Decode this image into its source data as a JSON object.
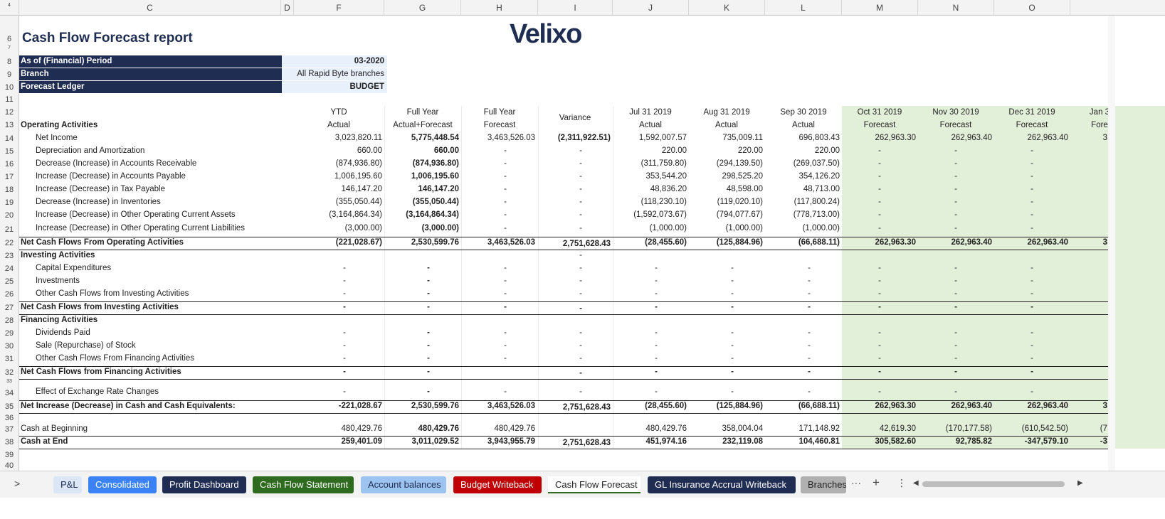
{
  "columns": {
    "C": "C",
    "D": "D",
    "F": "F",
    "G": "G",
    "H": "H",
    "I": "I",
    "J": "J",
    "K": "K",
    "L": "L",
    "M": "M",
    "N": "N",
    "O": "O"
  },
  "title": "Cash Flow Forecast report",
  "logo": "Velixo",
  "params": {
    "period_label": "As of (Financial) Period",
    "period_value": "03-2020",
    "branch_label": "Branch",
    "branch_value": "All Rapid Byte branches",
    "ledger_label": "Forecast Ledger",
    "ledger_value": "BUDGET"
  },
  "headers": {
    "F": [
      "YTD",
      "Actual"
    ],
    "G": [
      "Full Year",
      "Actual+Forecast"
    ],
    "H": [
      "Full Year",
      "Forecast"
    ],
    "I": [
      "Variance"
    ],
    "J": [
      "Jul 31 2019",
      "Actual"
    ],
    "K": [
      "Aug 31 2019",
      "Actual"
    ],
    "L": [
      "Sep 30 2019",
      "Actual"
    ],
    "M": [
      "Oct 31 2019",
      "Forecast"
    ],
    "N": [
      "Nov 30 2019",
      "Forecast"
    ],
    "O": [
      "Dec 31 2019",
      "Forecast"
    ],
    "P": [
      "Jan 3",
      "Fore"
    ]
  },
  "rows": [
    {
      "n": "13",
      "label": "Operating Activities",
      "section": true
    },
    {
      "n": "14",
      "label": "Net Income",
      "ind": true,
      "v": [
        "3,023,820.11",
        "5,775,448.54",
        "3,463,526.03",
        "(2,311,922.51)",
        "1,592,007.57",
        "735,009.11",
        "696,803.43",
        "262,963.30",
        "262,963.40",
        "262,963.40",
        "3"
      ]
    },
    {
      "n": "15",
      "label": "Depreciation and Amortization",
      "ind": true,
      "v": [
        "660.00",
        "660.00",
        "-",
        "-",
        "220.00",
        "220.00",
        "220.00",
        "-",
        "-",
        "-",
        ""
      ]
    },
    {
      "n": "16",
      "label": "Decrease (Increase) in Accounts Receivable",
      "ind": true,
      "v": [
        "(874,936.80)",
        "(874,936.80)",
        "-",
        "-",
        "(311,759.80)",
        "(294,139.50)",
        "(269,037.50)",
        "-",
        "-",
        "-",
        ""
      ]
    },
    {
      "n": "17",
      "label": "Increase (Decrease) in Accounts Payable",
      "ind": true,
      "v": [
        "1,006,195.60",
        "1,006,195.60",
        "-",
        "-",
        "353,544.20",
        "298,525.20",
        "354,126.20",
        "-",
        "-",
        "-",
        ""
      ]
    },
    {
      "n": "18",
      "label": "Increase (Decrease) in Tax Payable",
      "ind": true,
      "v": [
        "146,147.20",
        "146,147.20",
        "-",
        "-",
        "48,836.20",
        "48,598.00",
        "48,713.00",
        "-",
        "-",
        "-",
        ""
      ]
    },
    {
      "n": "19",
      "label": "Decrease (Increase) in Inventories",
      "ind": true,
      "v": [
        "(355,050.44)",
        "(355,050.44)",
        "-",
        "-",
        "(118,230.10)",
        "(119,020.10)",
        "(117,800.24)",
        "-",
        "-",
        "-",
        ""
      ]
    },
    {
      "n": "20",
      "label": "Increase (Decrease) in Other Operating Current Assets",
      "ind": true,
      "v": [
        "(3,164,864.34)",
        "(3,164,864.34)",
        "-",
        "-",
        "(1,592,073.67)",
        "(794,077.67)",
        "(778,713.00)",
        "-",
        "-",
        "-",
        ""
      ]
    },
    {
      "n": "21",
      "label": "Increase (Decrease) in Other Operating Current Liabilities",
      "ind": true,
      "v": [
        "(3,000.00)",
        "(3,000.00)",
        "-",
        "-",
        "(1,000.00)",
        "(1,000.00)",
        "(1,000.00)",
        "-",
        "-",
        "-",
        ""
      ]
    },
    {
      "n": "22",
      "label": "Net Cash Flows From Operating Activities",
      "total": true,
      "v": [
        "(221,028.67)",
        "2,530,599.76",
        "3,463,526.03",
        "2,751,628.43",
        "(28,455.60)",
        "(125,884.96)",
        "(66,688.11)",
        "262,963.30",
        "262,963.40",
        "262,963.40",
        "3"
      ]
    },
    {
      "n": "23",
      "label": "Investing Activities",
      "section": true,
      "v": [
        "",
        "",
        "",
        "-",
        "",
        "",
        "",
        "",
        "",
        "",
        ""
      ]
    },
    {
      "n": "24",
      "label": "Capital Expenditures",
      "ind": true,
      "v": [
        "-",
        "-",
        "-",
        "-",
        "-",
        "-",
        "-",
        "-",
        "-",
        "-",
        ""
      ]
    },
    {
      "n": "25",
      "label": "Investments",
      "ind": true,
      "v": [
        "-",
        "-",
        "-",
        "-",
        "-",
        "-",
        "-",
        "-",
        "-",
        "-",
        ""
      ]
    },
    {
      "n": "26",
      "label": "Other Cash Flows from Investing Activities",
      "ind": true,
      "v": [
        "-",
        "-",
        "-",
        "-",
        "-",
        "-",
        "-",
        "-",
        "-",
        "-",
        ""
      ]
    },
    {
      "n": "27",
      "label": "Net Cash Flows from Investing Activities",
      "total": true,
      "v": [
        "-",
        "-",
        "-",
        "-",
        "-",
        "-",
        "-",
        "-",
        "-",
        "-",
        ""
      ]
    },
    {
      "n": "28",
      "label": "Financing Activities",
      "section": true
    },
    {
      "n": "29",
      "label": "Dividends Paid",
      "ind": true,
      "v": [
        "-",
        "-",
        "-",
        "-",
        "-",
        "-",
        "-",
        "-",
        "-",
        "-",
        ""
      ]
    },
    {
      "n": "30",
      "label": "Sale (Repurchase) of Stock",
      "ind": true,
      "v": [
        "-",
        "-",
        "-",
        "-",
        "-",
        "-",
        "-",
        "-",
        "-",
        "-",
        ""
      ]
    },
    {
      "n": "31",
      "label": "Other Cash Flows From Financing Activities",
      "ind": true,
      "v": [
        "-",
        "-",
        "-",
        "-",
        "-",
        "-",
        "-",
        "-",
        "-",
        "-",
        ""
      ]
    },
    {
      "n": "32",
      "label": "Net Cash Flows from Financing Activities",
      "total": true,
      "v": [
        "-",
        "-",
        "",
        "-",
        "-",
        "-",
        "-",
        "-",
        "-",
        "-",
        ""
      ]
    },
    {
      "n": "34",
      "label": "Effect of Exchange Rate Changes",
      "ind": true,
      "v": [
        "-",
        "-",
        "-",
        "-",
        "-",
        "-",
        "-",
        "-",
        "-",
        "-",
        ""
      ]
    },
    {
      "n": "35",
      "label": "Net Increase (Decrease) in Cash and Cash Equivalents:",
      "total": true,
      "v": [
        "-221,028.67",
        "2,530,599.76",
        "3,463,526.03",
        "2,751,628.43",
        "(28,455.60)",
        "(125,884.96)",
        "(66,688.11)",
        "262,963.30",
        "262,963.40",
        "262,963.40",
        "3"
      ]
    },
    {
      "n": "37",
      "label": "Cash at Beginning",
      "v": [
        "480,429.76",
        "480,429.76",
        "480,429.76",
        "",
        "480,429.76",
        "358,004.04",
        "171,148.92",
        "42,619.30",
        "(170,177.58)",
        "(610,542.50)",
        "(7"
      ]
    },
    {
      "n": "38",
      "label": "Cash at End",
      "total": true,
      "v": [
        "259,401.09",
        "3,011,029.52",
        "3,943,955.79",
        "2,751,628.43",
        "451,974.16",
        "232,119.08",
        "104,460.81",
        "305,582.60",
        "92,785.82",
        "-347,579.10",
        "-3"
      ]
    }
  ],
  "tabs": [
    {
      "label": "P&L",
      "bg": "#dbe7f7",
      "fg": "#1f2d52"
    },
    {
      "label": "Consolidated",
      "bg": "#3b82f6",
      "fg": "#ffffff"
    },
    {
      "label": "Profit Dashboard",
      "bg": "#1f2d52",
      "fg": "#ffffff"
    },
    {
      "label": "Cash Flow Statement",
      "bg": "#2e6b1f",
      "fg": "#ffffff"
    },
    {
      "label": "Account balances",
      "bg": "#9dc3f0",
      "fg": "#1f2d52"
    },
    {
      "label": "Budget Writeback",
      "bg": "#c00000",
      "fg": "#ffffff"
    },
    {
      "label": "Cash Flow Forecast",
      "bg": "#ffffff",
      "fg": "#222222"
    },
    {
      "label": "GL Insurance Accrual Writeback",
      "bg": "#1f2d52",
      "fg": "#ffffff"
    },
    {
      "label": "Branches",
      "bg": "#b0b0b0",
      "fg": "#222222"
    }
  ],
  "tab_controls": {
    "more": "···",
    "add": "+",
    "menu": "⋮",
    "prev": "◀",
    "next": "▶",
    "nav": ">"
  }
}
